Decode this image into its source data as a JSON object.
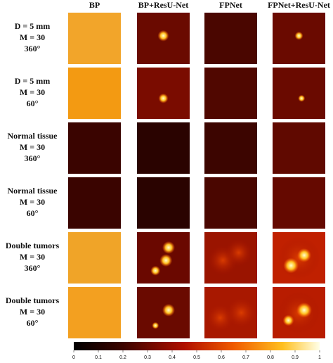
{
  "columns": [
    "BP",
    "BP+ResU-Net",
    "FPNet",
    "FPNet+ResU-Net"
  ],
  "rows": [
    {
      "lines": [
        "D = 5 mm",
        "M = 30",
        "360°"
      ]
    },
    {
      "lines": [
        "D = 5 mm",
        "M = 30",
        "60°"
      ]
    },
    {
      "lines": [
        "Normal tissue",
        "M = 30",
        "360°"
      ]
    },
    {
      "lines": [
        "Normal tissue",
        "M = 30",
        "60°"
      ]
    },
    {
      "lines": [
        "Double tumors",
        "M = 30",
        "360°"
      ]
    },
    {
      "lines": [
        "Double tumors",
        "M = 30",
        "60°"
      ]
    }
  ],
  "colorbar": {
    "lim": [
      0,
      1
    ],
    "ticks": [
      0,
      0.1,
      0.2,
      0.3,
      0.4,
      0.5,
      0.6,
      0.7,
      0.8,
      0.9,
      1
    ]
  }
}
